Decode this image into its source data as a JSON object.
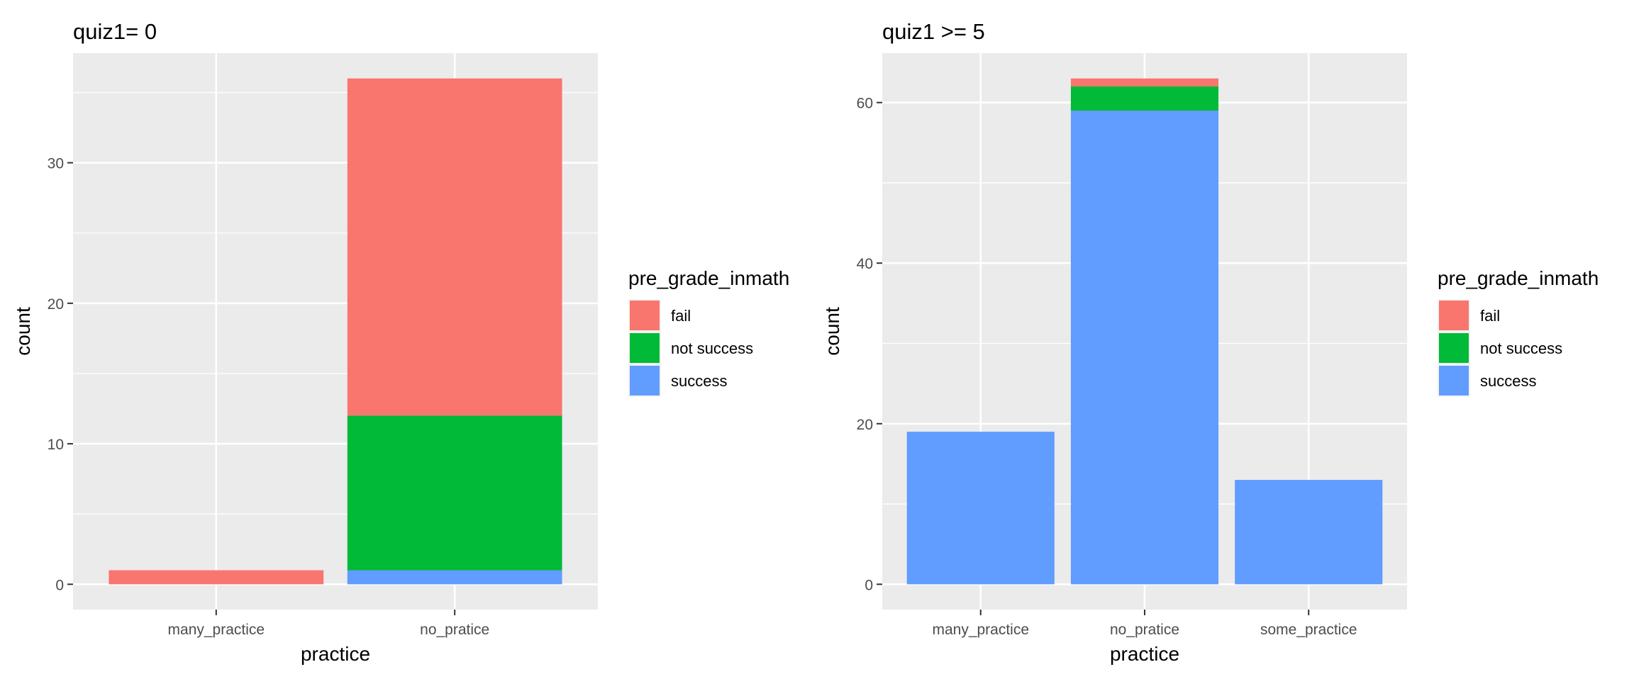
{
  "chart_data": [
    {
      "type": "bar",
      "stacked": true,
      "title": "quiz1= 0",
      "xlabel": "practice",
      "ylabel": "count",
      "categories": [
        "many_practice",
        "no_pratice"
      ],
      "ylim": [
        -1.8,
        37.8
      ],
      "yticks": [
        0,
        10,
        20,
        30
      ],
      "grid": true,
      "legend_position": "right",
      "legend_title": "pre_grade_inmath",
      "series": [
        {
          "name": "fail",
          "color": "#F8766D",
          "values": [
            1,
            24
          ]
        },
        {
          "name": "not success",
          "color": "#00BA38",
          "values": [
            0,
            11
          ]
        },
        {
          "name": "success",
          "color": "#619CFF",
          "values": [
            0,
            1
          ]
        }
      ]
    },
    {
      "type": "bar",
      "stacked": true,
      "title": "quiz1 >= 5",
      "xlabel": "practice",
      "ylabel": "count",
      "categories": [
        "many_practice",
        "no_pratice",
        "some_practice"
      ],
      "ylim": [
        -3.15,
        66.15
      ],
      "yticks": [
        0,
        20,
        40,
        60
      ],
      "grid": true,
      "legend_position": "right",
      "legend_title": "pre_grade_inmath",
      "series": [
        {
          "name": "fail",
          "color": "#F8766D",
          "values": [
            0,
            1,
            0
          ]
        },
        {
          "name": "not success",
          "color": "#00BA38",
          "values": [
            0,
            3,
            0
          ]
        },
        {
          "name": "success",
          "color": "#619CFF",
          "values": [
            19,
            59,
            13
          ]
        }
      ]
    }
  ]
}
